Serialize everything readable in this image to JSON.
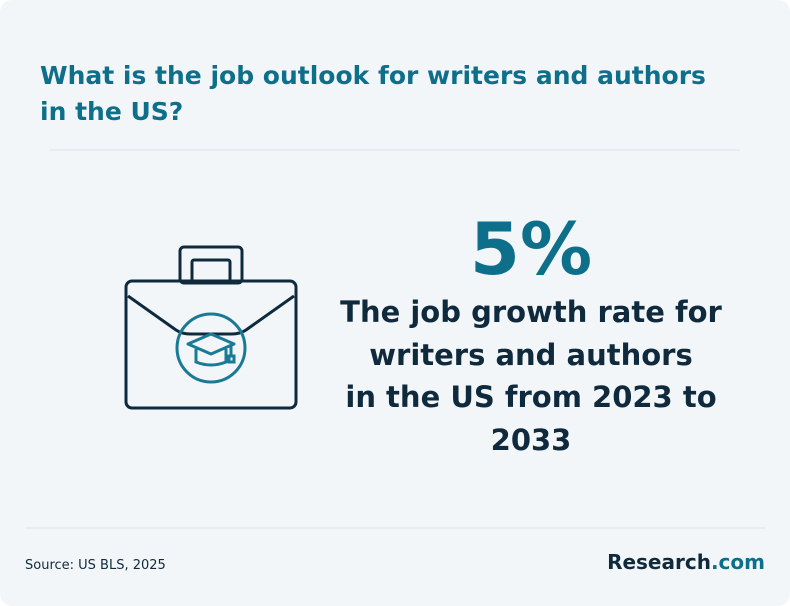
{
  "header": {
    "title_lines": [
      "What is the job outlook for writers and authors",
      "in the US?"
    ]
  },
  "stat": {
    "value": "5%",
    "description_lines": [
      "The job growth rate for",
      "writers and authors",
      "in the US from 2023 to",
      "2033"
    ]
  },
  "footer": {
    "source": "Source: US BLS, 2025",
    "brand": {
      "name": "Research",
      "domain": ".com"
    }
  }
}
